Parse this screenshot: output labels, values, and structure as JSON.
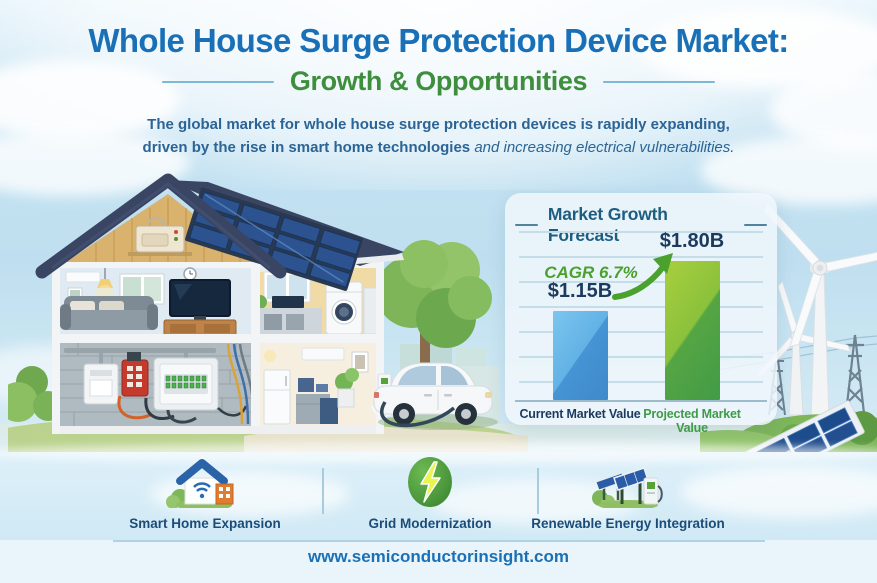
{
  "colors": {
    "title_blue": "#1A70B6",
    "subtitle_green": "#3E8E3E",
    "desc_blue": "#2B6495",
    "chart_title": "#1D5E80",
    "value_navy": "#1C3A5E",
    "cagr_green": "#4BA12D",
    "cat_green": "#3F9B47",
    "bar_blue": "#4694D4",
    "bar_green": "#55A544",
    "label_navy": "#1B4C77",
    "footer_blue": "#1A70B6"
  },
  "header": {
    "title": "Whole House Surge Protection Device Market:",
    "subtitle": "Growth & Opportunities",
    "description": {
      "line1_normal": "The global market for whole house surge protection devices is ",
      "line1_bold": "rapidly expanding",
      "line1_tail": ",",
      "line2_normal": "driven by the rise in smart home technologies ",
      "line2_italic": "and increasing electrical vulnerabilities."
    }
  },
  "chart_data": {
    "type": "bar",
    "title": "Market Growth Forecast",
    "categories": [
      "Current Market Value",
      "Projected Market Value"
    ],
    "values": [
      1.15,
      1.8
    ],
    "value_labels": [
      "$1.15B",
      "$1.80B"
    ],
    "annotation": "CAGR 6.7%",
    "ylim": [
      0,
      2.0
    ],
    "grid": true,
    "legend_position": "none",
    "bar_colors": [
      "#4694D4",
      "#55A544"
    ],
    "category_label_colors": [
      "#1C3A5E",
      "#3F9B47"
    ]
  },
  "features": [
    {
      "label": "Smart Home Expansion",
      "icon": "smart-home-wifi-icon"
    },
    {
      "label": "Grid Modernization",
      "icon": "lightning-bolt-icon"
    },
    {
      "label": "Renewable Energy Integration",
      "icon": "solar-ev-charger-icon"
    }
  ],
  "footer": {
    "url": "www.semiconductorinsight.com"
  }
}
